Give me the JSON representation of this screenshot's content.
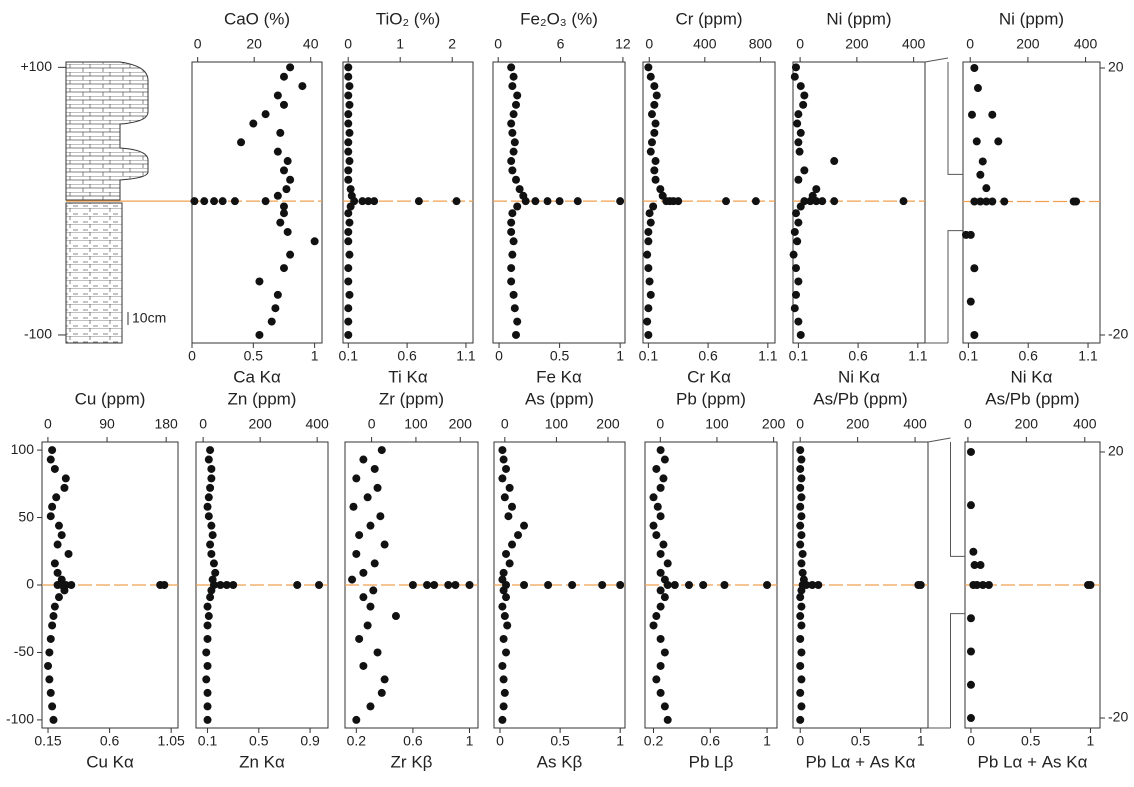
{
  "column": {
    "ylim": [
      -106,
      104
    ],
    "yticks": [
      {
        "value": 100,
        "label": "+100"
      },
      {
        "value": -100,
        "label": "-100"
      }
    ],
    "scale_label": "10cm"
  },
  "chart_data": [
    {
      "type": "scatter",
      "title": "CaO (%)",
      "xlabel": "Ca Kα",
      "color": "#111111",
      "hline": 0,
      "hline_color": "#f0a050",
      "xlim": [
        0,
        1.06
      ],
      "xticks": [
        0,
        0.5,
        1
      ],
      "x2lim": [
        -2,
        44
      ],
      "x2ticks": [
        0,
        20,
        40
      ],
      "ylim": [
        -106,
        104
      ],
      "x": [
        0.8,
        0.75,
        0.9,
        0.7,
        0.75,
        0.6,
        0.5,
        0.72,
        0.4,
        0.7,
        0.78,
        0.75,
        0.8,
        0.77,
        0.7,
        0.02,
        0.1,
        0.18,
        0.25,
        0.35,
        0.6,
        0.75,
        0.75,
        0.72,
        0.78,
        1.0,
        0.8,
        0.75,
        0.55,
        0.7,
        0.68,
        0.65,
        0.55
      ],
      "y": [
        100,
        93,
        86,
        79,
        72,
        65,
        58,
        51,
        44,
        37,
        30,
        23,
        16,
        9,
        4,
        0,
        0,
        0,
        0,
        0,
        0,
        -4,
        -9,
        -16,
        -23,
        -30,
        -40,
        -50,
        -60,
        -70,
        -80,
        -90,
        -100
      ]
    },
    {
      "type": "scatter",
      "title": "TiO₂ (%)",
      "xlabel": "Ti Kα",
      "color": "#111111",
      "hline": 0,
      "hline_color": "#f0a050",
      "xlim": [
        0.055,
        1.16
      ],
      "xticks": [
        0.1,
        0.6,
        1.1
      ],
      "x2lim": [
        -0.1,
        2.4
      ],
      "x2ticks": [
        0,
        1,
        2
      ],
      "ylim": [
        -106,
        104
      ],
      "x": [
        0.1,
        0.1,
        0.11,
        0.1,
        0.11,
        0.1,
        0.1,
        0.11,
        0.1,
        0.1,
        0.11,
        0.1,
        0.1,
        0.12,
        0.13,
        0.15,
        0.22,
        0.27,
        0.32,
        0.7,
        1.02,
        0.12,
        0.1,
        0.11,
        0.1,
        0.1,
        0.11,
        0.1,
        0.1,
        0.11,
        0.1,
        0.1,
        0.1
      ],
      "y": [
        100,
        93,
        86,
        79,
        72,
        65,
        58,
        51,
        44,
        37,
        30,
        23,
        16,
        9,
        4,
        0,
        0,
        0,
        0,
        0,
        0,
        -4,
        -9,
        -16,
        -23,
        -30,
        -40,
        -50,
        -60,
        -70,
        -80,
        -90,
        -100
      ]
    },
    {
      "type": "scatter",
      "title": "Fe₂O₃ (%)",
      "xlabel": "Fe Kα",
      "color": "#111111",
      "hline": 0,
      "hline_color": "#f0a050",
      "xlim": [
        -0.05,
        1.04
      ],
      "xticks": [
        0,
        0.5,
        1
      ],
      "x2lim": [
        -0.5,
        12.2
      ],
      "x2ticks": [
        0,
        6,
        12
      ],
      "ylim": [
        -106,
        104
      ],
      "x": [
        0.1,
        0.12,
        0.11,
        0.15,
        0.14,
        0.12,
        0.1,
        0.11,
        0.13,
        0.12,
        0.1,
        0.11,
        0.14,
        0.17,
        0.2,
        0.22,
        0.3,
        0.4,
        0.5,
        0.65,
        1.0,
        0.15,
        0.11,
        0.1,
        0.1,
        0.12,
        0.11,
        0.1,
        0.1,
        0.12,
        0.13,
        0.15,
        0.14
      ],
      "y": [
        100,
        93,
        86,
        79,
        72,
        65,
        58,
        51,
        44,
        37,
        30,
        23,
        16,
        9,
        4,
        0,
        0,
        0,
        0,
        0,
        0,
        -4,
        -9,
        -16,
        -23,
        -30,
        -40,
        -50,
        -60,
        -70,
        -80,
        -90,
        -100
      ]
    },
    {
      "type": "scatter",
      "title": "Cr (ppm)",
      "xlabel": "Cr Kα",
      "color": "#111111",
      "hline": 0,
      "hline_color": "#f0a050",
      "xlim": [
        0.055,
        1.16
      ],
      "xticks": [
        0.1,
        0.6,
        1.1
      ],
      "x2lim": [
        -45,
        905
      ],
      "x2ticks": [
        0,
        400,
        800
      ],
      "ylim": [
        -106,
        104
      ],
      "x": [
        0.1,
        0.12,
        0.15,
        0.17,
        0.15,
        0.13,
        0.16,
        0.15,
        0.13,
        0.12,
        0.16,
        0.15,
        0.16,
        0.2,
        0.22,
        0.25,
        0.28,
        0.31,
        0.35,
        0.75,
        1.0,
        0.14,
        0.11,
        0.12,
        0.1,
        0.1,
        0.09,
        0.1,
        0.11,
        0.12,
        0.1,
        0.09,
        0.1
      ],
      "y": [
        100,
        93,
        86,
        79,
        72,
        65,
        58,
        51,
        44,
        37,
        30,
        23,
        16,
        9,
        4,
        0,
        0,
        0,
        0,
        0,
        0,
        -4,
        -9,
        -16,
        -23,
        -30,
        -40,
        -50,
        -60,
        -70,
        -80,
        -90,
        -100
      ]
    },
    {
      "type": "scatter",
      "title": "Ni (ppm)",
      "xlabel": "Ni Kα",
      "color": "#111111",
      "hline": 0,
      "hline_color": "#f0a050",
      "xlim": [
        0.055,
        1.16
      ],
      "xticks": [
        0.1,
        0.6,
        1.1
      ],
      "x2lim": [
        -25,
        440
      ],
      "x2ticks": [
        0,
        200,
        400
      ],
      "ylim": [
        -106,
        104
      ],
      "x": [
        0.08,
        0.07,
        0.12,
        0.15,
        0.14,
        0.1,
        0.09,
        0.12,
        0.1,
        0.11,
        0.4,
        0.15,
        0.1,
        0.25,
        0.22,
        0.15,
        0.2,
        0.25,
        0.3,
        0.4,
        0.98,
        0.12,
        0.08,
        0.1,
        0.07,
        0.09,
        0.06,
        0.08,
        0.1,
        0.08,
        0.07,
        0.1,
        0.12
      ],
      "y": [
        100,
        93,
        86,
        79,
        72,
        65,
        58,
        51,
        44,
        37,
        30,
        23,
        16,
        9,
        4,
        0,
        0,
        0,
        0,
        0,
        0,
        -4,
        -9,
        -16,
        -23,
        -30,
        -40,
        -50,
        -60,
        -70,
        -80,
        -90,
        -100
      ]
    },
    {
      "type": "scatter",
      "title": "Ni (ppm)",
      "xlabel": "Ni Kα",
      "color": "#111111",
      "hline": 0,
      "hline_color": "#f0a050",
      "xlim": [
        0.055,
        1.2
      ],
      "xticks": [
        0.1,
        0.6,
        1.1
      ],
      "x2lim": [
        -25,
        450
      ],
      "x2ticks": [
        0,
        200,
        400
      ],
      "ylim": [
        -21.2,
        20.9
      ],
      "y2ticks": [
        20,
        -20
      ],
      "x": [
        0.15,
        0.18,
        0.13,
        0.3,
        0.17,
        0.35,
        0.22,
        0.2,
        0.25,
        0.15,
        0.2,
        0.25,
        0.3,
        0.4,
        0.98,
        1.0,
        0.08,
        0.12,
        0.15,
        0.12,
        0.15
      ],
      "y": [
        20,
        17,
        13,
        13,
        9,
        9,
        6,
        4,
        2,
        0,
        0,
        0,
        0,
        0,
        0,
        0,
        -5,
        -5,
        -10,
        -15,
        -20
      ]
    },
    {
      "type": "scatter",
      "title": "Cu (ppm)",
      "xlabel": "Cu Kα",
      "color": "#111111",
      "hline": 0,
      "hline_color": "#f0a050",
      "xlim": [
        0.106,
        1.1
      ],
      "xticks": [
        0.15,
        0.6,
        1.05
      ],
      "x2lim": [
        -9,
        198
      ],
      "x2ticks": [
        0,
        90,
        180
      ],
      "ylim": [
        -106,
        106
      ],
      "yticks": [
        100,
        50,
        0,
        -50,
        -100
      ],
      "x": [
        0.18,
        0.17,
        0.2,
        0.28,
        0.27,
        0.21,
        0.18,
        0.17,
        0.23,
        0.25,
        0.22,
        0.3,
        0.2,
        0.22,
        0.25,
        0.22,
        0.25,
        0.28,
        0.32,
        0.97,
        1.0,
        0.27,
        0.23,
        0.2,
        0.19,
        0.18,
        0.17,
        0.16,
        0.15,
        0.16,
        0.17,
        0.18,
        0.19
      ],
      "y": [
        100,
        93,
        86,
        79,
        72,
        65,
        58,
        51,
        44,
        37,
        30,
        23,
        16,
        9,
        4,
        0,
        0,
        0,
        0,
        0,
        0,
        -4,
        -9,
        -16,
        -23,
        -30,
        -40,
        -50,
        -60,
        -70,
        -80,
        -90,
        -100
      ]
    },
    {
      "type": "scatter",
      "title": "Zn (ppm)",
      "xlabel": "Zn Kα",
      "color": "#111111",
      "hline": 0,
      "hline_color": "#f0a050",
      "xlim": [
        0.01,
        1.04
      ],
      "xticks": [
        0.1,
        0.5,
        0.9
      ],
      "x2lim": [
        -25,
        438
      ],
      "x2ticks": [
        0,
        200,
        400
      ],
      "ylim": [
        -106,
        106
      ],
      "x": [
        0.12,
        0.11,
        0.13,
        0.13,
        0.12,
        0.11,
        0.1,
        0.11,
        0.13,
        0.14,
        0.12,
        0.13,
        0.15,
        0.16,
        0.14,
        0.15,
        0.2,
        0.25,
        0.3,
        0.8,
        0.97,
        0.13,
        0.12,
        0.1,
        0.11,
        0.1,
        0.1,
        0.09,
        0.1,
        0.09,
        0.1,
        0.1,
        0.1
      ],
      "y": [
        100,
        93,
        86,
        79,
        72,
        65,
        58,
        51,
        44,
        37,
        30,
        23,
        16,
        9,
        4,
        0,
        0,
        0,
        0,
        0,
        0,
        -4,
        -9,
        -16,
        -23,
        -30,
        -40,
        -50,
        -60,
        -70,
        -80,
        -90,
        -100
      ]
    },
    {
      "type": "scatter",
      "title": "Zr (ppm)",
      "xlabel": "Zr Kβ",
      "color": "#111111",
      "hline": 0,
      "hline_color": "#f0a050",
      "xlim": [
        0.12,
        1.06
      ],
      "xticks": [
        0.2,
        0.6,
        1
      ],
      "x2lim": [
        -60,
        240
      ],
      "x2ticks": [
        0,
        100,
        200
      ],
      "ylim": [
        -106,
        106
      ],
      "x": [
        0.38,
        0.25,
        0.33,
        0.2,
        0.35,
        0.28,
        0.18,
        0.37,
        0.3,
        0.22,
        0.4,
        0.2,
        0.33,
        0.25,
        0.17,
        0.6,
        0.7,
        0.75,
        0.85,
        0.9,
        1.0,
        0.32,
        0.25,
        0.3,
        0.48,
        0.28,
        0.22,
        0.35,
        0.25,
        0.4,
        0.38,
        0.3,
        0.2
      ],
      "y": [
        100,
        93,
        86,
        79,
        72,
        65,
        58,
        51,
        44,
        37,
        30,
        23,
        16,
        9,
        4,
        0,
        0,
        0,
        0,
        0,
        0,
        -4,
        -9,
        -16,
        -23,
        -30,
        -40,
        -50,
        -60,
        -70,
        -80,
        -90,
        -100
      ]
    },
    {
      "type": "scatter",
      "title": "As (ppm)",
      "xlabel": "As Kβ",
      "color": "#111111",
      "hline": 0,
      "hline_color": "#f0a050",
      "xlim": [
        -0.05,
        1.04
      ],
      "xticks": [
        0,
        0.5,
        1
      ],
      "x2lim": [
        -21,
        233
      ],
      "x2ticks": [
        0,
        100,
        200
      ],
      "ylim": [
        -106,
        106
      ],
      "x": [
        0.02,
        0.03,
        0.05,
        0.02,
        0.08,
        0.04,
        0.1,
        0.07,
        0.2,
        0.15,
        0.1,
        0.05,
        0.08,
        0.03,
        0.02,
        0.05,
        0.2,
        0.4,
        0.6,
        0.85,
        1.0,
        0.03,
        0.05,
        0.02,
        0.04,
        0.06,
        0.03,
        0.05,
        0.02,
        0.03,
        0.04,
        0.03,
        0.02
      ],
      "y": [
        100,
        93,
        86,
        79,
        72,
        65,
        58,
        51,
        44,
        37,
        30,
        23,
        16,
        9,
        4,
        0,
        0,
        0,
        0,
        0,
        0,
        -4,
        -9,
        -16,
        -23,
        -30,
        -40,
        -50,
        -60,
        -70,
        -80,
        -90,
        -100
      ]
    },
    {
      "type": "scatter",
      "title": "Pb (ppm)",
      "xlabel": "Pb Lβ",
      "color": "#111111",
      "hline": 0,
      "hline_color": "#f0a050",
      "xlim": [
        0.14,
        1.07
      ],
      "xticks": [
        0.2,
        0.6,
        1
      ],
      "x2lim": [
        -27,
        206
      ],
      "x2ticks": [
        0,
        100,
        200
      ],
      "ylim": [
        -106,
        106
      ],
      "x": [
        0.25,
        0.28,
        0.22,
        0.27,
        0.25,
        0.2,
        0.23,
        0.25,
        0.2,
        0.22,
        0.27,
        0.25,
        0.3,
        0.25,
        0.28,
        0.3,
        0.35,
        0.45,
        0.55,
        0.7,
        1.0,
        0.25,
        0.28,
        0.25,
        0.22,
        0.2,
        0.25,
        0.28,
        0.25,
        0.22,
        0.25,
        0.28,
        0.3
      ],
      "y": [
        100,
        93,
        86,
        79,
        72,
        65,
        58,
        51,
        44,
        37,
        30,
        23,
        16,
        9,
        4,
        0,
        0,
        0,
        0,
        0,
        0,
        -4,
        -9,
        -16,
        -23,
        -30,
        -40,
        -50,
        -60,
        -70,
        -80,
        -90,
        -100
      ]
    },
    {
      "type": "scatter",
      "title": "As/Pb (ppm)",
      "xlabel": "Pb Lα + As Kα",
      "color": "#111111",
      "hline": 0,
      "hline_color": "#f0a050",
      "xlim": [
        -0.06,
        1.06
      ],
      "xticks": [
        0,
        0.5,
        1
      ],
      "x2lim": [
        -25,
        445
      ],
      "x2ticks": [
        0,
        200,
        400
      ],
      "ylim": [
        -106,
        106
      ],
      "x": [
        0.0,
        0.01,
        0.0,
        0.01,
        0.0,
        0.01,
        0.0,
        0.01,
        0.0,
        0.01,
        0.0,
        0.02,
        0.01,
        0.02,
        0.03,
        0.02,
        0.05,
        0.1,
        0.15,
        0.98,
        1.0,
        0.01,
        0.0,
        0.01,
        0.0,
        0.01,
        0.0,
        0.01,
        0.0,
        0.01,
        0.0,
        0.01,
        0.0
      ],
      "y": [
        100,
        93,
        86,
        79,
        72,
        65,
        58,
        51,
        44,
        37,
        30,
        23,
        16,
        9,
        4,
        0,
        0,
        0,
        0,
        0,
        0,
        -4,
        -9,
        -16,
        -23,
        -30,
        -40,
        -50,
        -60,
        -70,
        -80,
        -90,
        -100
      ]
    },
    {
      "type": "scatter",
      "title": "As/Pb (ppm)",
      "xlabel": "Pb Lα + As Kα",
      "color": "#111111",
      "hline": 0,
      "hline_color": "#f0a050",
      "xlim": [
        -0.05,
        1.08
      ],
      "xticks": [
        0,
        0.5,
        1
      ],
      "x2lim": [
        -10,
        452
      ],
      "x2ticks": [
        0,
        200,
        400
      ],
      "ylim": [
        -21.5,
        21.5
      ],
      "y2ticks": [
        20,
        -20
      ],
      "x": [
        0.0,
        0.0,
        0.02,
        0.03,
        0.08,
        0.02,
        0.05,
        0.1,
        0.15,
        0.98,
        1.0,
        0.0,
        0.0,
        0.0,
        0.0
      ],
      "y": [
        20,
        12,
        5,
        3,
        3,
        0,
        0,
        0,
        0,
        0,
        0,
        -5,
        -10,
        -15,
        -20
      ]
    }
  ]
}
